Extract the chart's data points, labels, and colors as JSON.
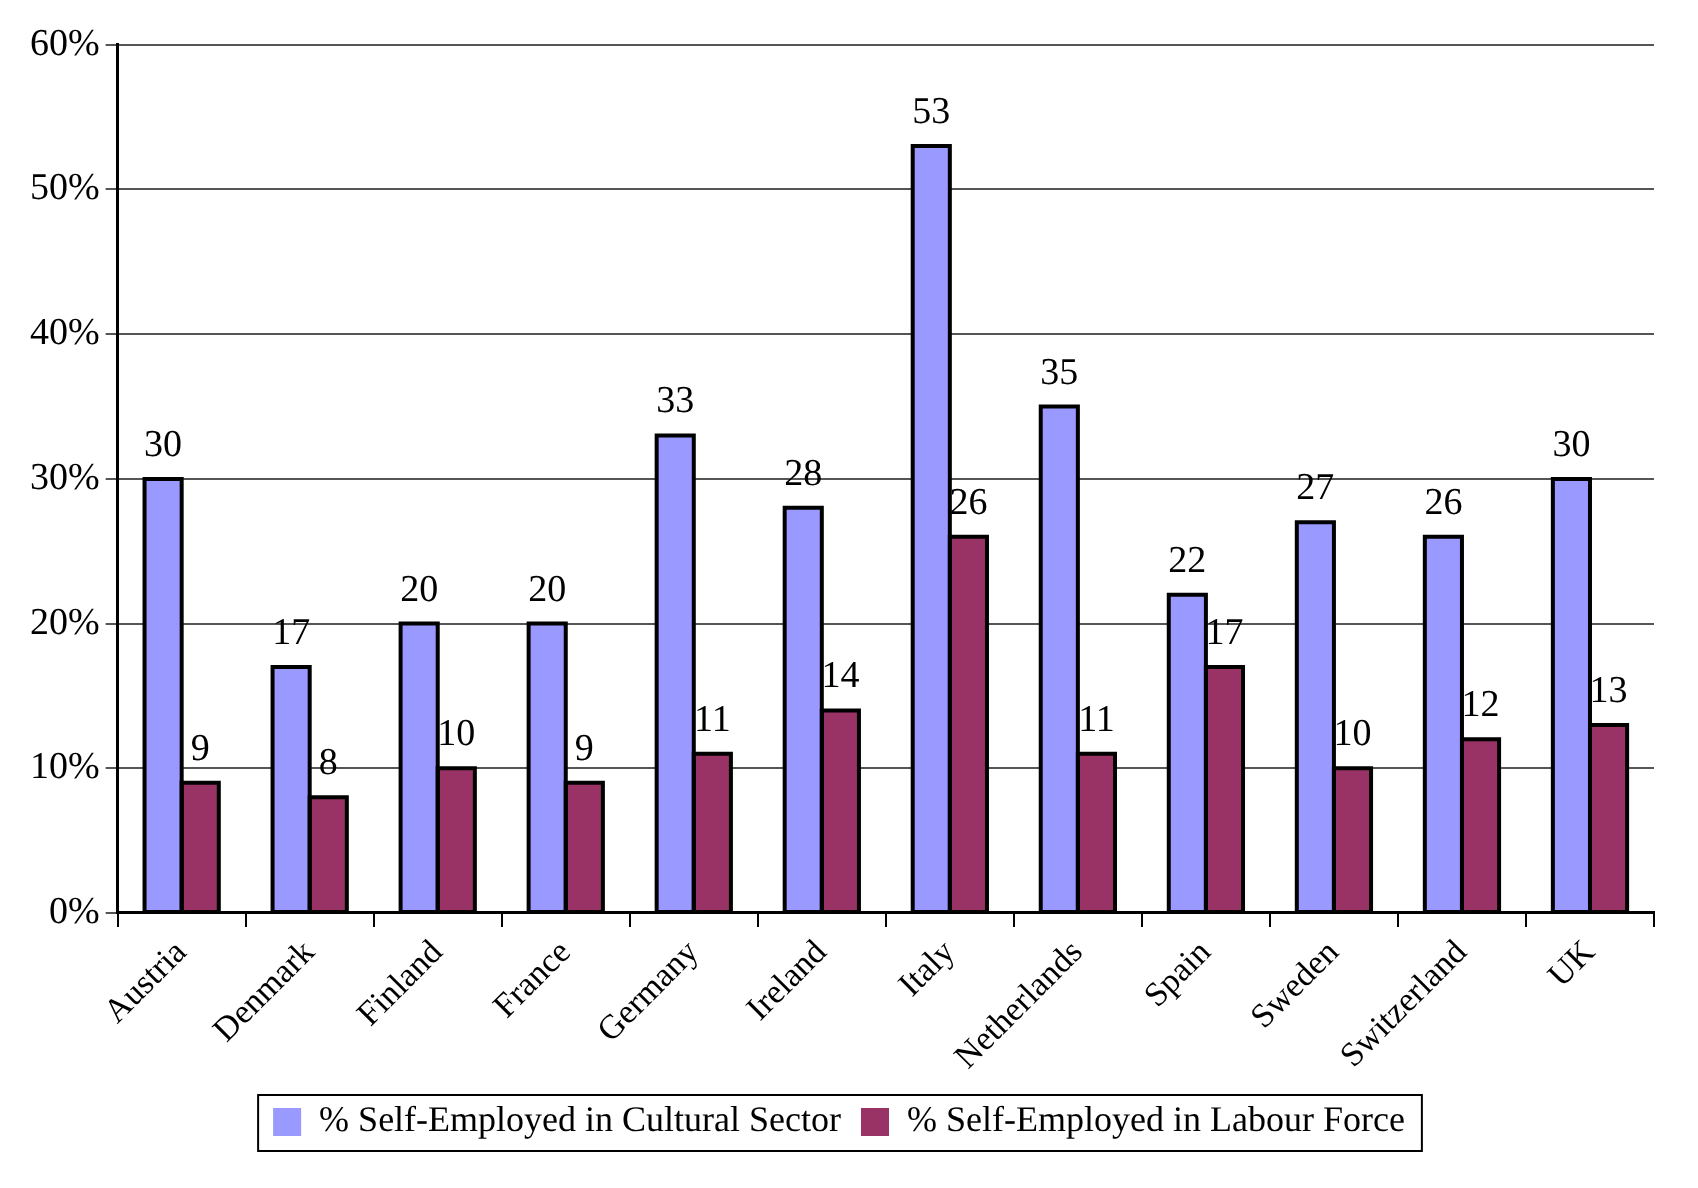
{
  "chart_data": {
    "type": "bar",
    "categories": [
      "Austria",
      "Denmark",
      "Finland",
      "France",
      "Germany",
      "Ireland",
      "Italy",
      "Netherlands",
      "Spain",
      "Sweden",
      "Switzerland",
      "UK"
    ],
    "series": [
      {
        "name": "% Self-Employed in Cultural Sector",
        "color": "#9999ff",
        "values": [
          30,
          17,
          20,
          20,
          33,
          28,
          53,
          35,
          22,
          27,
          26,
          30
        ]
      },
      {
        "name": "% Self-Employed in Labour Force",
        "color": "#993366",
        "values": [
          9,
          8,
          10,
          9,
          11,
          14,
          26,
          11,
          17,
          10,
          12,
          13
        ]
      }
    ],
    "ylim": [
      0,
      60
    ],
    "yticks": [
      {
        "value": 0,
        "label": "0%"
      },
      {
        "value": 10,
        "label": "10%"
      },
      {
        "value": 20,
        "label": "20%"
      },
      {
        "value": 30,
        "label": "30%"
      },
      {
        "value": 40,
        "label": "40%"
      },
      {
        "value": 50,
        "label": "50%"
      },
      {
        "value": 60,
        "label": "60%"
      }
    ],
    "grid": "y",
    "legend": "bottom",
    "data_labels": true
  }
}
